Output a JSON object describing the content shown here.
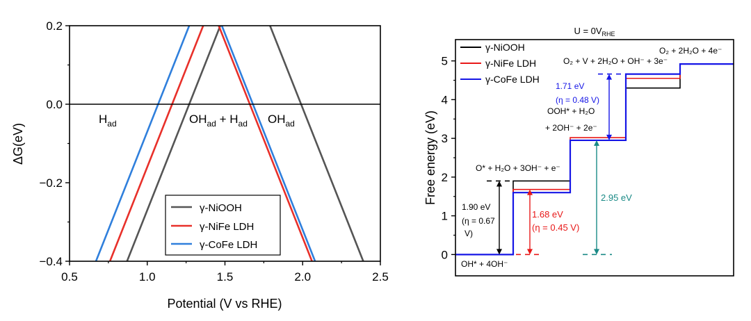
{
  "chart_data": [
    {
      "type": "line",
      "xlabel": "Potential (V vs RHE)",
      "ylabel": "ΔG(eV)",
      "xlim": [
        0.5,
        2.5
      ],
      "ylim": [
        -0.4,
        0.2
      ],
      "xticks": [
        0.5,
        1.0,
        1.5,
        2.0,
        2.5
      ],
      "xtick_labels": [
        "0.5",
        "1.0",
        "1.5",
        "2.0",
        "2.5"
      ],
      "yticks": [
        -0.4,
        -0.2,
        0.0,
        0.2
      ],
      "ytick_labels": [
        "−0.4",
        "−0.2",
        "0.0",
        "0.2"
      ],
      "reference_line": 0.0,
      "regions": [
        {
          "label": "H",
          "sub": "ad",
          "x": 0.64,
          "y": -0.04
        },
        {
          "label": "OH",
          "sub": "ad",
          "label2": " + H",
          "sub2": "ad",
          "x": 1.28,
          "y": -0.04
        },
        {
          "label": "OH",
          "sub": "ad",
          "x": 1.82,
          "y": -0.04
        }
      ],
      "series": [
        {
          "name": "γ-NiOOH",
          "color": "#555555",
          "x": [
            0.87,
            1.47,
            1.47,
            1.79,
            2.39
          ],
          "y": [
            -0.4,
            0.2,
            0.2,
            0.2,
            -0.4
          ],
          "segments": [
            [
              [
                0.87,
                -0.4
              ],
              [
                1.47,
                0.2
              ]
            ],
            [
              [
                1.79,
                0.2
              ],
              [
                2.39,
                -0.4
              ]
            ]
          ]
        },
        {
          "name": "γ-NiFe LDH",
          "color": "#e8302a",
          "segments": [
            [
              [
                0.76,
                -0.4
              ],
              [
                1.36,
                0.2
              ]
            ],
            [
              [
                1.46,
                0.2
              ],
              [
                2.06,
                -0.4
              ]
            ]
          ]
        },
        {
          "name": "γ-CoFe LDH",
          "color": "#2f7fdc",
          "segments": [
            [
              [
                0.67,
                -0.4
              ],
              [
                1.27,
                0.2
              ]
            ],
            [
              [
                1.48,
                0.2
              ],
              [
                2.08,
                -0.4
              ]
            ]
          ]
        }
      ],
      "legend": {
        "position": "bottom-right",
        "entries": [
          "γ-NiOOH",
          "γ-NiFe LDH",
          "γ-CoFe LDH"
        ]
      }
    },
    {
      "type": "line",
      "subtype": "step",
      "title": "U = 0V",
      "title_sub": "RHE",
      "ylabel": "Free energy (eV)",
      "ylim": [
        -0.55,
        5.55
      ],
      "yticks": [
        0,
        1,
        2,
        3,
        4,
        5
      ],
      "ytick_labels": [
        "0",
        "1",
        "2",
        "3",
        "4",
        "5"
      ],
      "series": [
        {
          "name": "γ-NiOOH",
          "color": "#000000",
          "steps": [
            0,
            1.9,
            2.95,
            4.3,
            4.92
          ]
        },
        {
          "name": "γ-NiFe LDH",
          "color": "#e81818",
          "steps": [
            0,
            1.68,
            3.02,
            4.55,
            4.92
          ]
        },
        {
          "name": "γ-CoFe LDH",
          "color": "#1515e6",
          "steps": [
            0,
            1.6,
            2.95,
            4.66,
            4.92
          ]
        }
      ],
      "legend": {
        "position": "top-left",
        "entries": [
          "γ-NiOOH",
          "γ-NiFe LDH",
          "γ-CoFe LDH"
        ]
      },
      "step_labels": [
        {
          "text": "OH* + 4OH⁻"
        },
        {
          "text": "O* + H₂O + 3OH⁻ + e⁻"
        },
        {
          "text": "OOH* + H₂O"
        },
        {
          "text": "+ 2OH⁻ + 2e⁻"
        },
        {
          "text": "O₂ + V + 2H₂O + OH⁻ + 3e⁻"
        },
        {
          "text": "O₂ + 2H₂O + 4e⁻"
        }
      ],
      "annotations": [
        {
          "lines": [
            "1.90 eV",
            "(η = 0.67",
            "V)"
          ],
          "color": "#000000",
          "from": 0,
          "to": 1.9
        },
        {
          "lines": [
            "1.68 eV",
            "(η = 0.45 V)"
          ],
          "color": "#e81818",
          "from": 0,
          "to": 1.68
        },
        {
          "lines": [
            "2.95 eV"
          ],
          "color": "#1a8a86",
          "from": 0,
          "to": 2.95
        },
        {
          "lines": [
            "1.71 eV",
            "(η = 0.48 V)"
          ],
          "color": "#1515e6",
          "from": 2.95,
          "to": 4.66
        }
      ]
    }
  ]
}
